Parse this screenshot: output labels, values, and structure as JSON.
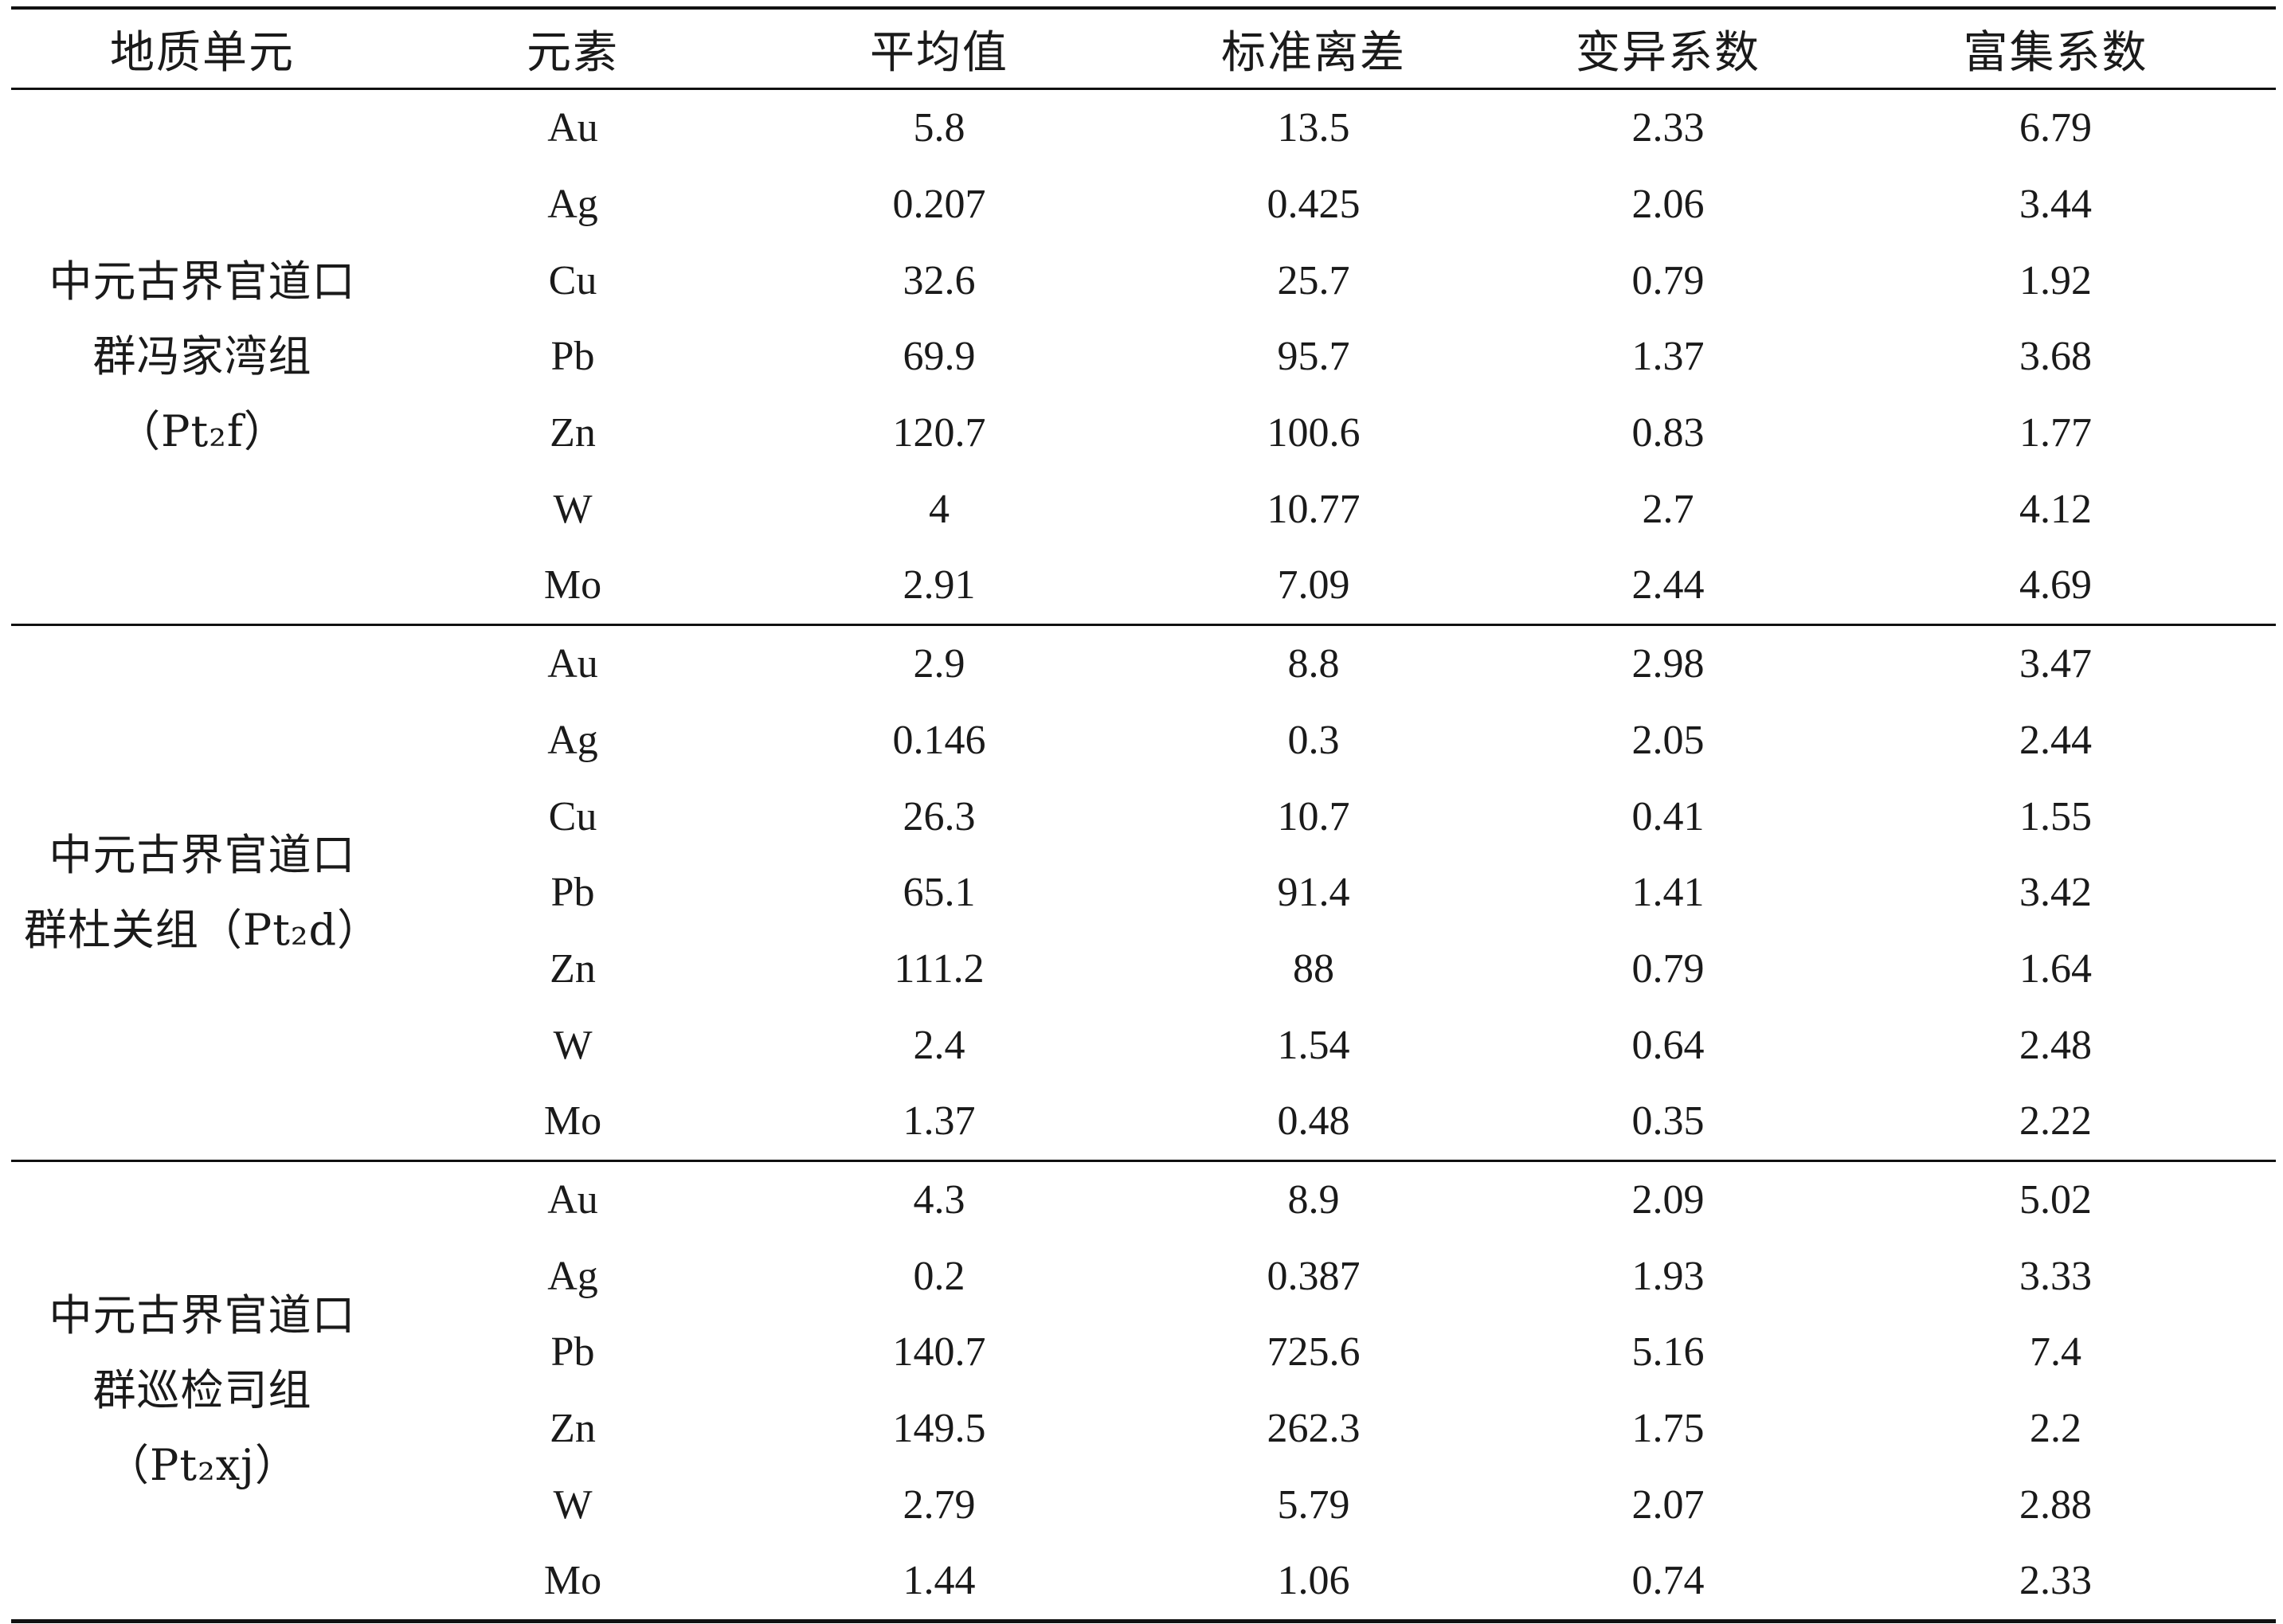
{
  "headers": [
    "地质单元",
    "元素",
    "平均值",
    "标准离差",
    "变异系数",
    "富集系数"
  ],
  "groups": [
    {
      "unit_lines": [
        "中元古界官道口",
        "群冯家湾组",
        "（Pt₂f）"
      ],
      "rows": [
        [
          "Au",
          "5.8",
          "13.5",
          "2.33",
          "6.79"
        ],
        [
          "Ag",
          "0.207",
          "0.425",
          "2.06",
          "3.44"
        ],
        [
          "Cu",
          "32.6",
          "25.7",
          "0.79",
          "1.92"
        ],
        [
          "Pb",
          "69.9",
          "95.7",
          "1.37",
          "3.68"
        ],
        [
          "Zn",
          "120.7",
          "100.6",
          "0.83",
          "1.77"
        ],
        [
          "W",
          "4",
          "10.77",
          "2.7",
          "4.12"
        ],
        [
          "Mo",
          "2.91",
          "7.09",
          "2.44",
          "4.69"
        ]
      ]
    },
    {
      "unit_lines": [
        "中元古界官道口",
        "群杜关组（Pt₂d）"
      ],
      "rows": [
        [
          "Au",
          "2.9",
          "8.8",
          "2.98",
          "3.47"
        ],
        [
          "Ag",
          "0.146",
          "0.3",
          "2.05",
          "2.44"
        ],
        [
          "Cu",
          "26.3",
          "10.7",
          "0.41",
          "1.55"
        ],
        [
          "Pb",
          "65.1",
          "91.4",
          "1.41",
          "3.42"
        ],
        [
          "Zn",
          "111.2",
          "88",
          "0.79",
          "1.64"
        ],
        [
          "W",
          "2.4",
          "1.54",
          "0.64",
          "2.48"
        ],
        [
          "Mo",
          "1.37",
          "0.48",
          "0.35",
          "2.22"
        ]
      ]
    },
    {
      "unit_lines": [
        "中元古界官道口",
        "群巡检司组",
        "（Pt₂xj）"
      ],
      "rows": [
        [
          "Au",
          "4.3",
          "8.9",
          "2.09",
          "5.02"
        ],
        [
          "Ag",
          "0.2",
          "0.387",
          "1.93",
          "3.33"
        ],
        [
          "Pb",
          "140.7",
          "725.6",
          "5.16",
          "7.4"
        ],
        [
          "Zn",
          "149.5",
          "262.3",
          "1.75",
          "2.2"
        ],
        [
          "W",
          "2.79",
          "5.79",
          "2.07",
          "2.88"
        ],
        [
          "Mo",
          "1.44",
          "1.06",
          "0.74",
          "2.33"
        ]
      ]
    }
  ]
}
